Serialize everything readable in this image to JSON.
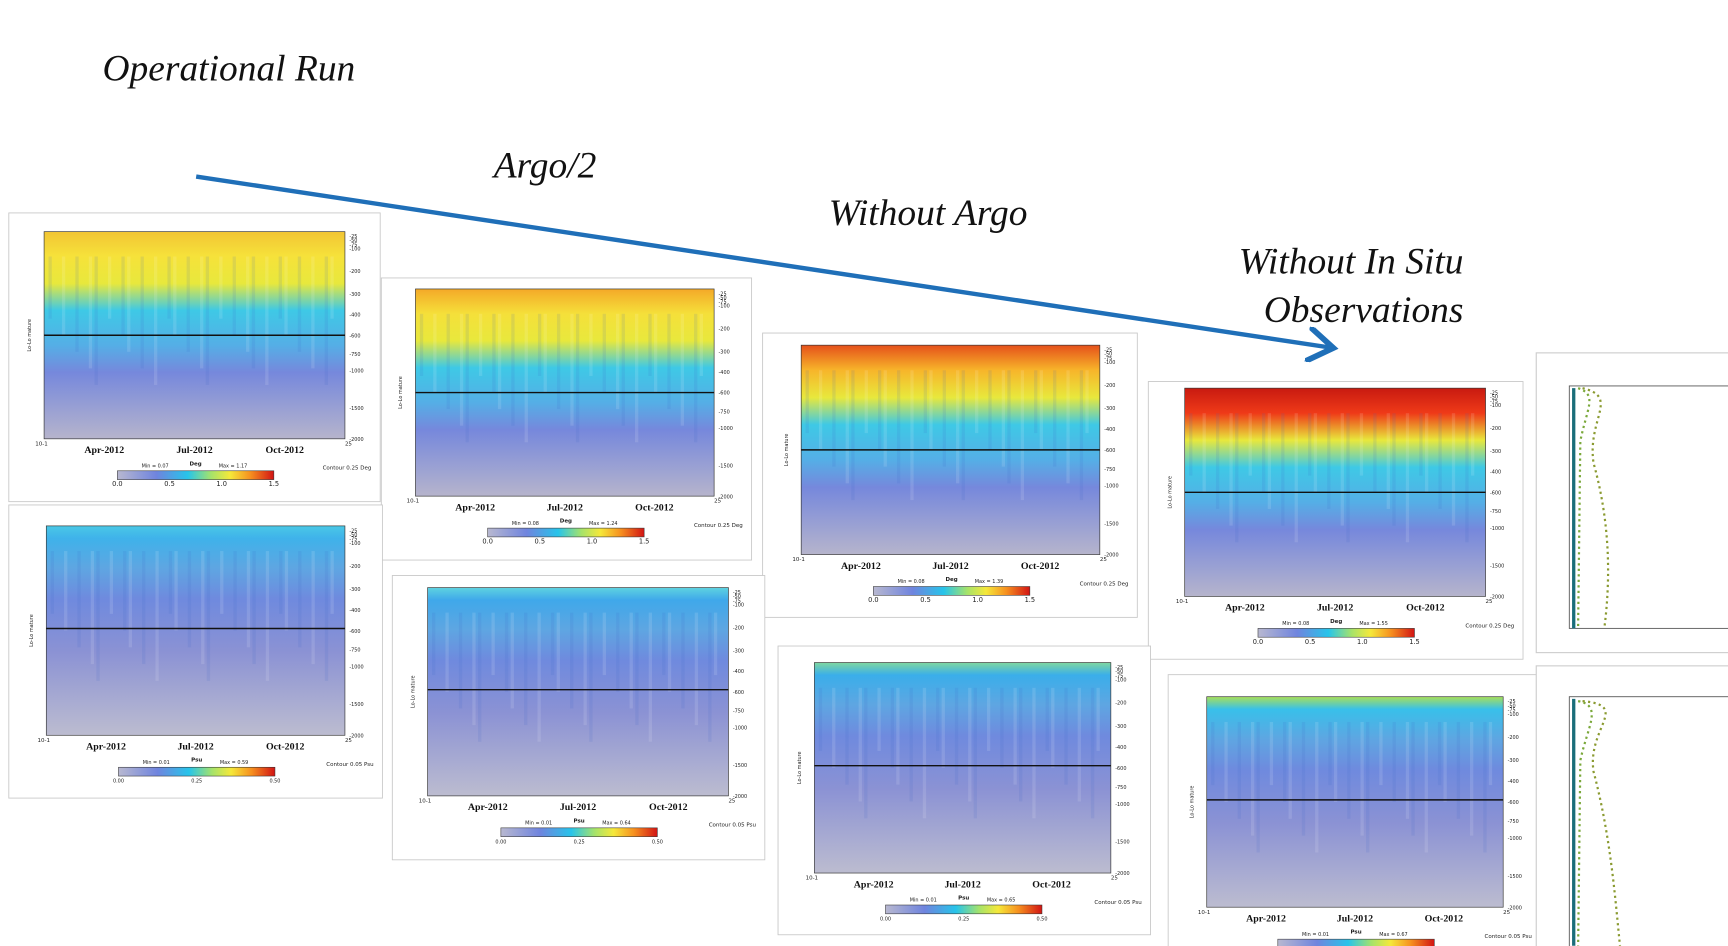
{
  "titles": {
    "operational": "Operational Run",
    "argo_half": "Argo/2",
    "without_argo": "Without Argo",
    "without_in_situ": [
      "Without In Situ",
      "Observations"
    ]
  },
  "panel_axes": {
    "x_labels": [
      "Apr-2012",
      "Jul-2012",
      "Oct-2012"
    ],
    "x_start": "10-1",
    "x_end": "25",
    "y_label": "Lo-Lo mature",
    "depth_labels": [
      "-25",
      "-50",
      "-75",
      "-100",
      "-200",
      "-300",
      "-400",
      "-600",
      "-750",
      "-1000",
      "-1500",
      "-2000"
    ]
  },
  "panels": [
    {
      "variable": "temperature",
      "min": "Min = 0.07",
      "unit": "Deg",
      "max": "Max = 1.17",
      "colorbar_ticks": [
        "0.0",
        "0.5",
        "1.0",
        "1.5"
      ],
      "contour": "Contour 0.25 Deg"
    },
    {
      "variable": "temperature",
      "min": "Min = 0.08",
      "unit": "Deg",
      "max": "Max = 1.24",
      "colorbar_ticks": [
        "0.0",
        "0.5",
        "1.0",
        "1.5"
      ],
      "contour": "Contour 0.25 Deg"
    },
    {
      "variable": "temperature",
      "min": "Min = 0.08",
      "unit": "Deg",
      "max": "Max = 1.39",
      "colorbar_ticks": [
        "0.0",
        "0.5",
        "1.0",
        "1.5"
      ],
      "contour": "Contour 0.25 Deg"
    },
    {
      "variable": "temperature",
      "min": "Min = 0.08",
      "unit": "Deg",
      "max": "Max = 1.55",
      "colorbar_ticks": [
        "0.0",
        "0.5",
        "1.0",
        "1.5"
      ],
      "contour": "Contour 0.25 Deg"
    },
    {
      "variable": "salinity",
      "min": "Min = 0.01",
      "unit": "Psu",
      "max": "Max = 0.59",
      "colorbar_ticks": [
        "0.00",
        "0.25",
        "0.50"
      ],
      "contour": "Contour 0.05 Psu"
    },
    {
      "variable": "salinity",
      "min": "Min = 0.01",
      "unit": "Psu",
      "max": "Max = 0.64",
      "colorbar_ticks": [
        "0.00",
        "0.25",
        "0.50"
      ],
      "contour": "Contour 0.05 Psu"
    },
    {
      "variable": "salinity",
      "min": "Min = 0.01",
      "unit": "Psu",
      "max": "Max = 0.65",
      "colorbar_ticks": [
        "0.00",
        "0.25",
        "0.50"
      ],
      "contour": "Contour 0.05 Psu"
    },
    {
      "variable": "salinity",
      "min": "Min = 0.01",
      "unit": "Psu",
      "max": "Max = 0.67",
      "colorbar_ticks": [
        "0.00",
        "0.25",
        "0.50"
      ],
      "contour": "Contour 0.05 Psu"
    }
  ]
}
